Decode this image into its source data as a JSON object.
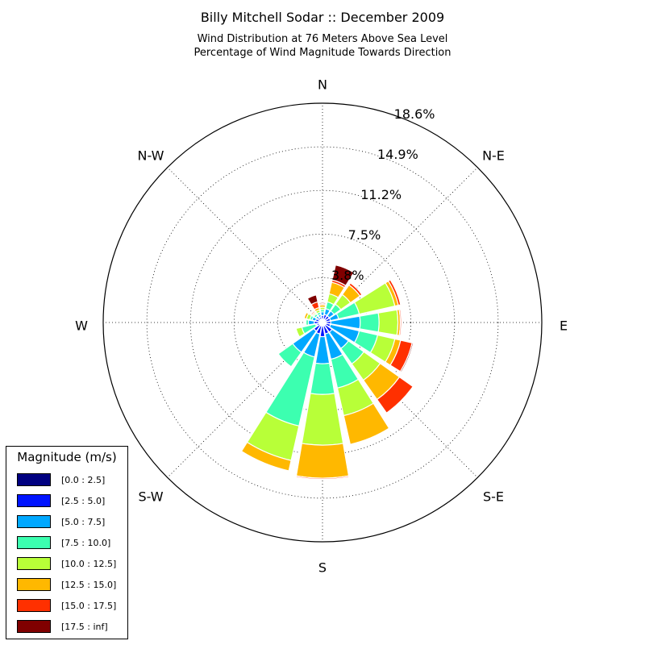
{
  "title": "Billy Mitchell Sodar :: December 2009",
  "subtitle_line1": "Wind Distribution at 76 Meters Above Sea Level",
  "subtitle_line2": "Percentage of Wind Magnitude Towards Direction",
  "colors": [
    "#000080",
    "#0014ff",
    "#00a8ff",
    "#3cffb0",
    "#b8ff38",
    "#ffb800",
    "#ff3000",
    "#800000"
  ],
  "chart_data": {
    "type": "windrose",
    "direction_labels": [
      "N",
      "N-E",
      "E",
      "S-E",
      "S",
      "S-W",
      "W",
      "N-W"
    ],
    "radial_ticks": [
      "3.8%",
      "7.5%",
      "11.2%",
      "14.9%",
      "18.6%"
    ],
    "radial_tick_values": [
      3.8,
      7.5,
      11.2,
      14.9,
      18.6
    ],
    "rmax": 18.6,
    "bin_labels": [
      "[0.0 : 2.5]",
      "[2.5 : 5.0]",
      "[5.0 : 7.5]",
      "[7.5 : 10.0]",
      "[10.0 : 12.5]",
      "[12.5 : 15.0]",
      "[15.0 : 17.5]",
      "[17.5 : inf]"
    ],
    "legend_title": "Magnitude (m/s)",
    "legend_placement": "bottom-left",
    "directions_deg": [
      0,
      22.5,
      45,
      67.5,
      90,
      112.5,
      135,
      157.5,
      180,
      202.5,
      225,
      247.5,
      270,
      292.5,
      315,
      337.5
    ],
    "cumulative": [
      [
        0.3,
        0.6,
        0.9,
        1.1,
        1.3,
        1.5,
        1.6,
        1.7
      ],
      [
        0.3,
        0.7,
        1.2,
        1.8,
        2.5,
        3.5,
        3.7,
        5.0
      ],
      [
        0.3,
        0.7,
        1.2,
        1.9,
        2.9,
        3.9,
        4.1,
        4.1
      ],
      [
        0.3,
        0.7,
        1.4,
        3.2,
        6.3,
        6.6,
        6.8,
        6.8
      ],
      [
        0.3,
        0.7,
        3.2,
        4.8,
        6.4,
        6.6,
        6.7,
        6.7
      ],
      [
        0.3,
        0.7,
        3.2,
        4.8,
        6.3,
        6.8,
        7.8,
        7.9
      ],
      [
        0.3,
        1.0,
        2.7,
        4.3,
        6.0,
        8.0,
        9.4,
        9.4
      ],
      [
        0.3,
        1.0,
        3.2,
        5.7,
        8.1,
        10.6,
        10.6,
        10.6
      ],
      [
        0.3,
        1.2,
        3.5,
        6.1,
        10.4,
        13.2,
        13.3,
        13.3
      ],
      [
        0.3,
        1.0,
        3.0,
        9.0,
        12.0,
        12.9,
        12.9,
        12.9
      ],
      [
        0.3,
        0.9,
        3.1,
        4.6,
        4.6,
        4.6,
        4.6,
        4.6
      ],
      [
        0.3,
        0.5,
        0.6,
        1.8,
        2.3,
        2.3,
        2.3,
        2.3
      ],
      [
        0.3,
        0.7,
        1.2,
        1.4,
        1.4,
        1.4,
        1.4,
        1.4
      ],
      [
        0.3,
        0.6,
        0.9,
        1.1,
        1.4,
        1.6,
        1.6,
        1.6
      ],
      [
        0.3,
        0.5,
        0.7,
        0.9,
        1.0,
        1.1,
        1.2,
        1.2
      ],
      [
        0.3,
        0.5,
        0.7,
        0.9,
        1.1,
        1.3,
        1.8,
        2.4
      ]
    ]
  },
  "legend_rows": [
    {
      "label": "[0.0 : 2.5]"
    },
    {
      "label": "[2.5 : 5.0]"
    },
    {
      "label": "[5.0 : 7.5]"
    },
    {
      "label": "[7.5 : 10.0]"
    },
    {
      "label": "[10.0 : 12.5]"
    },
    {
      "label": "[12.5 : 15.0]"
    },
    {
      "label": "[15.0 : 17.5]"
    },
    {
      "label": "[17.5 : inf]"
    }
  ]
}
